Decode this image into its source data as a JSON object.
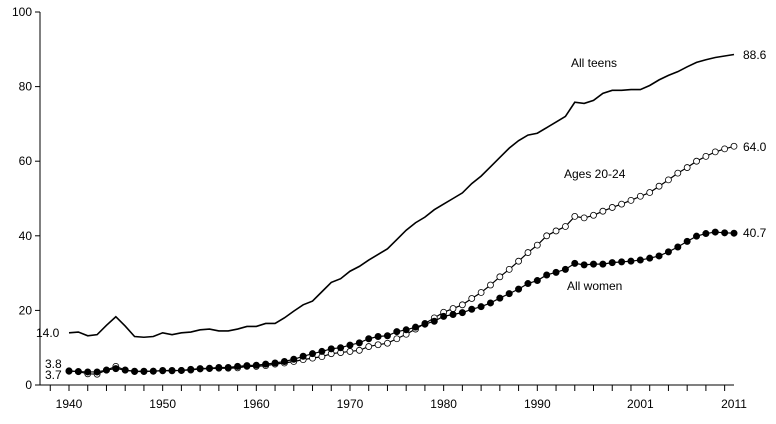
{
  "chart_data": {
    "type": "line",
    "title": "",
    "xlabel": "",
    "ylabel": "",
    "xlim": [
      1940,
      2011
    ],
    "ylim": [
      0,
      100
    ],
    "grid": false,
    "legend": "none (series labelled inline)",
    "y_ticks": [
      "0",
      "20",
      "40",
      "60",
      "80",
      "100"
    ],
    "x_ticks": [
      {
        "value": 1940,
        "label": "1940"
      },
      {
        "value": 1950,
        "label": "1950"
      },
      {
        "value": 1960,
        "label": "1960"
      },
      {
        "value": 1970,
        "label": "1970"
      },
      {
        "value": 1980,
        "label": "1980"
      },
      {
        "value": 1990,
        "label": "1990"
      },
      {
        "value": 2001,
        "label": "2001"
      },
      {
        "value": 2011,
        "label": "2011"
      }
    ],
    "x_start": 1940,
    "series": [
      {
        "name": "All teens",
        "marker": "none",
        "start_label": "14.0",
        "end_label": "88.6",
        "values": [
          14.0,
          14.2,
          13.2,
          13.5,
          16.0,
          18.3,
          15.8,
          13.0,
          12.8,
          13.0,
          14.0,
          13.5,
          14.0,
          14.2,
          14.8,
          15.0,
          14.5,
          14.5,
          15.0,
          15.7,
          15.7,
          16.5,
          16.5,
          18.0,
          19.8,
          21.5,
          22.5,
          25.0,
          27.5,
          28.5,
          30.5,
          31.8,
          33.5,
          35.0,
          36.5,
          39.0,
          41.5,
          43.5,
          45.0,
          47.0,
          48.5,
          50.0,
          51.5,
          54.0,
          56.0,
          58.5,
          61.0,
          63.5,
          65.5,
          67.0,
          67.5,
          69.0,
          70.5,
          72.0,
          75.8,
          75.5,
          76.3,
          78.2,
          79.0,
          79.0,
          79.2,
          79.2,
          80.3,
          81.8,
          83.0,
          84.0,
          85.3,
          86.5,
          87.2,
          87.8,
          88.2,
          88.6
        ]
      },
      {
        "name": "Ages 20-24",
        "marker": "open-circle",
        "start_label": "3.8",
        "end_label": "64.0",
        "values": [
          3.8,
          3.6,
          3.0,
          2.9,
          4.0,
          5.0,
          4.0,
          3.6,
          3.6,
          3.7,
          3.8,
          3.8,
          3.9,
          4.0,
          4.3,
          4.4,
          4.5,
          4.5,
          4.6,
          5.0,
          5.0,
          5.2,
          5.6,
          5.9,
          6.3,
          6.8,
          7.2,
          7.6,
          8.4,
          8.7,
          9.0,
          9.3,
          10.3,
          10.8,
          11.2,
          12.4,
          13.6,
          15.0,
          16.5,
          18.0,
          19.5,
          20.5,
          21.5,
          23.2,
          24.8,
          26.8,
          29.0,
          31.0,
          33.2,
          35.5,
          37.5,
          40.0,
          41.3,
          42.5,
          45.2,
          44.8,
          45.5,
          46.6,
          47.6,
          48.5,
          49.5,
          50.6,
          51.6,
          53.3,
          55.0,
          56.8,
          58.3,
          60.0,
          61.3,
          62.5,
          63.3,
          64.0
        ]
      },
      {
        "name": "All women",
        "marker": "filled-circle",
        "start_label": "3.7",
        "end_label": "40.7",
        "values": [
          3.7,
          3.6,
          3.5,
          3.5,
          4.0,
          4.4,
          4.0,
          3.7,
          3.7,
          3.7,
          3.9,
          3.9,
          3.9,
          4.2,
          4.4,
          4.5,
          4.7,
          4.7,
          5.0,
          5.2,
          5.3,
          5.6,
          5.9,
          6.3,
          6.9,
          7.7,
          8.4,
          9.0,
          9.7,
          10.0,
          10.7,
          11.3,
          12.4,
          13.0,
          13.2,
          14.3,
          14.8,
          15.5,
          16.3,
          17.1,
          18.4,
          18.9,
          19.4,
          20.3,
          21.0,
          22.0,
          23.3,
          24.5,
          25.7,
          27.2,
          28.0,
          29.5,
          30.2,
          31.0,
          32.6,
          32.2,
          32.4,
          32.4,
          32.8,
          33.0,
          33.2,
          33.5,
          34.0,
          34.6,
          35.7,
          37.0,
          38.5,
          39.9,
          40.6,
          41.0,
          40.8,
          40.7
        ]
      }
    ]
  }
}
